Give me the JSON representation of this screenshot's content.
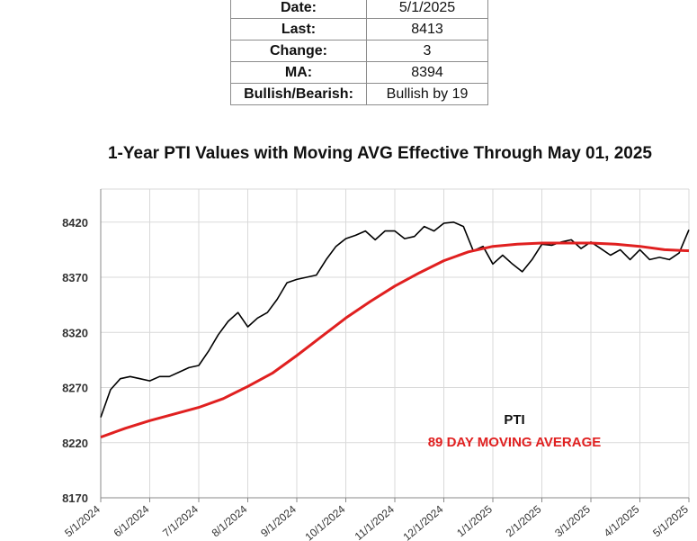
{
  "summary": {
    "rows": [
      {
        "key": "Date:",
        "value": "5/1/2025"
      },
      {
        "key": "Last:",
        "value": "8413"
      },
      {
        "key": "Change:",
        "value": "3"
      },
      {
        "key": "MA:",
        "value": "8394"
      },
      {
        "key": "Bullish/Bearish:",
        "value": "Bullish by 19"
      }
    ]
  },
  "chart_data": {
    "type": "line",
    "title": "1-Year PTI Values with Moving AVG Effective Through May 01, 2025",
    "ylim": [
      8170,
      8420
    ],
    "yticks": [
      8170,
      8220,
      8270,
      8320,
      8370,
      8420
    ],
    "xticks": [
      "5/1/2024",
      "6/1/2024",
      "7/1/2024",
      "8/1/2024",
      "9/1/2024",
      "10/1/2024",
      "11/1/2024",
      "12/1/2024",
      "1/1/2025",
      "2/1/2025",
      "3/1/2025",
      "4/1/2025",
      "5/1/2025"
    ],
    "grid": true,
    "legend_position": "inside-bottom-right",
    "series": [
      {
        "name": "PTI",
        "color": "#000000",
        "x": [
          0,
          0.2,
          0.4,
          0.6,
          0.8,
          1,
          1.2,
          1.4,
          1.6,
          1.8,
          2,
          2.2,
          2.4,
          2.6,
          2.8,
          3,
          3.2,
          3.4,
          3.6,
          3.8,
          4,
          4.2,
          4.4,
          4.6,
          4.8,
          5,
          5.2,
          5.4,
          5.6,
          5.8,
          6,
          6.2,
          6.4,
          6.6,
          6.8,
          7,
          7.2,
          7.4,
          7.6,
          7.8,
          8,
          8.2,
          8.4,
          8.6,
          8.8,
          9,
          9.2,
          9.4,
          9.6,
          9.8,
          10,
          10.2,
          10.4,
          10.6,
          10.8,
          11,
          11.2,
          11.4,
          11.6,
          11.8,
          12
        ],
        "values": [
          8243,
          8268,
          8278,
          8280,
          8278,
          8276,
          8280,
          8280,
          8284,
          8288,
          8290,
          8303,
          8318,
          8330,
          8338,
          8325,
          8333,
          8338,
          8350,
          8365,
          8368,
          8370,
          8372,
          8386,
          8398,
          8405,
          8408,
          8412,
          8404,
          8412,
          8412,
          8405,
          8407,
          8416,
          8412,
          8419,
          8420,
          8416,
          8394,
          8398,
          8382,
          8390,
          8382,
          8375,
          8386,
          8400,
          8399,
          8402,
          8404,
          8396,
          8402,
          8396,
          8390,
          8395,
          8386,
          8395,
          8386,
          8388,
          8386,
          8392,
          8413
        ]
      },
      {
        "name": "89 DAY MOVING AVERAGE",
        "color": "#e02020",
        "x": [
          0,
          0.5,
          1,
          1.5,
          2,
          2.5,
          3,
          3.5,
          4,
          4.5,
          5,
          5.5,
          6,
          6.5,
          7,
          7.5,
          8,
          8.5,
          9,
          9.5,
          10,
          10.5,
          11,
          11.5,
          12
        ],
        "values": [
          8225,
          8233,
          8240,
          8246,
          8252,
          8260,
          8271,
          8283,
          8299,
          8316,
          8333,
          8348,
          8362,
          8374,
          8385,
          8393,
          8398,
          8400,
          8401,
          8401,
          8401,
          8400,
          8398,
          8395,
          8394
        ]
      }
    ]
  }
}
